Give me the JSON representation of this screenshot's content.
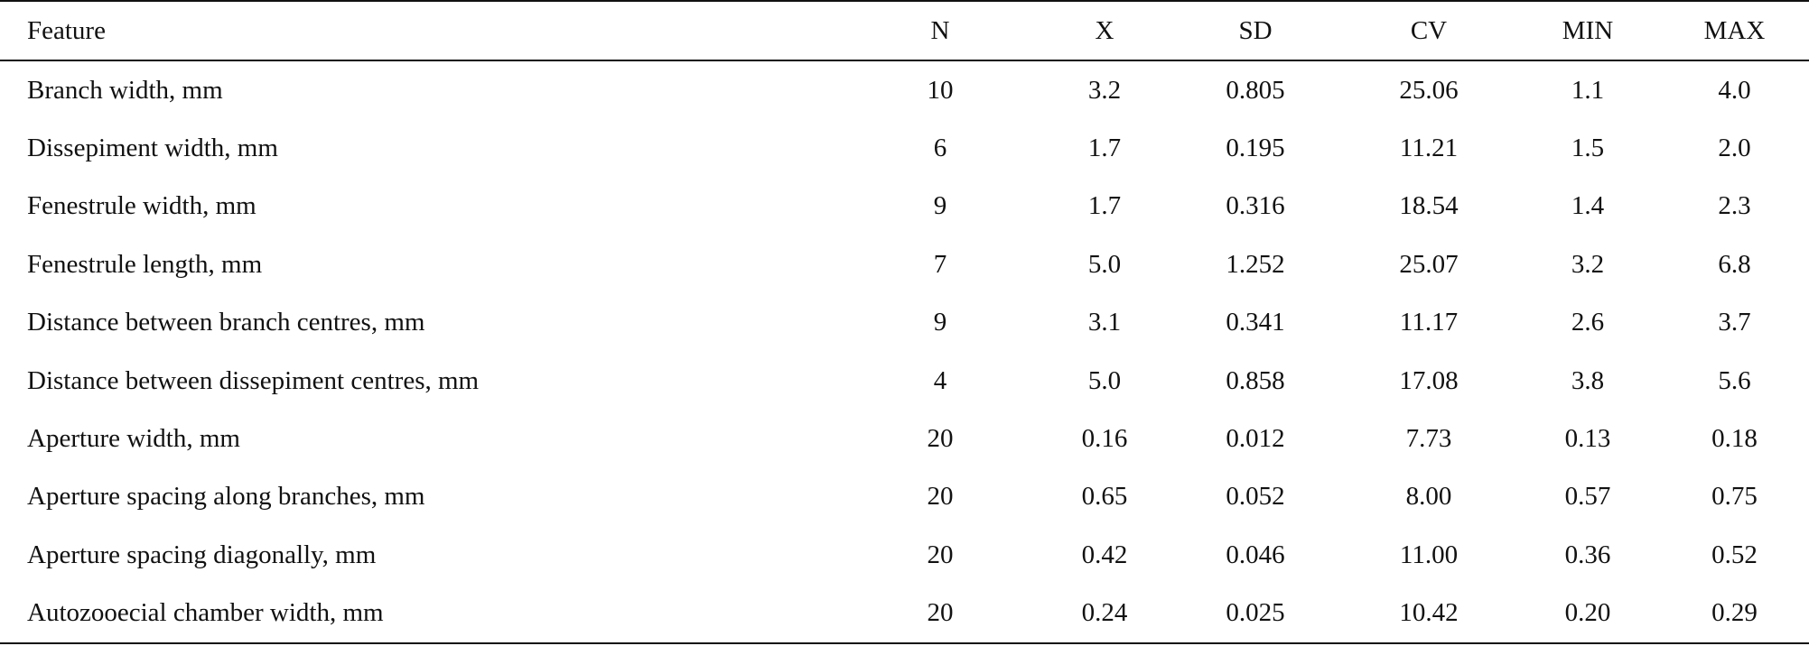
{
  "table": {
    "columns": [
      "Feature",
      "N",
      "X",
      "SD",
      "CV",
      "MIN",
      "MAX"
    ],
    "rows": [
      {
        "feature": "Branch width, mm",
        "n": "10",
        "x": "3.2",
        "sd": "0.805",
        "cv": "25.06",
        "min": "1.1",
        "max": "4.0"
      },
      {
        "feature": "Dissepiment width, mm",
        "n": "6",
        "x": "1.7",
        "sd": "0.195",
        "cv": "11.21",
        "min": "1.5",
        "max": "2.0"
      },
      {
        "feature": "Fenestrule width, mm",
        "n": "9",
        "x": "1.7",
        "sd": "0.316",
        "cv": "18.54",
        "min": "1.4",
        "max": "2.3"
      },
      {
        "feature": "Fenestrule length, mm",
        "n": "7",
        "x": "5.0",
        "sd": "1.252",
        "cv": "25.07",
        "min": "3.2",
        "max": "6.8"
      },
      {
        "feature": "Distance between branch centres, mm",
        "n": "9",
        "x": "3.1",
        "sd": "0.341",
        "cv": "11.17",
        "min": "2.6",
        "max": "3.7"
      },
      {
        "feature": "Distance between dissepiment centres, mm",
        "n": "4",
        "x": "5.0",
        "sd": "0.858",
        "cv": "17.08",
        "min": "3.8",
        "max": "5.6"
      },
      {
        "feature": "Aperture width, mm",
        "n": "20",
        "x": "0.16",
        "sd": "0.012",
        "cv": "7.73",
        "min": "0.13",
        "max": "0.18"
      },
      {
        "feature": "Aperture spacing along branches, mm",
        "n": "20",
        "x": "0.65",
        "sd": "0.052",
        "cv": "8.00",
        "min": "0.57",
        "max": "0.75"
      },
      {
        "feature": "Aperture spacing diagonally, mm",
        "n": "20",
        "x": "0.42",
        "sd": "0.046",
        "cv": "11.00",
        "min": "0.36",
        "max": "0.52"
      },
      {
        "feature": "Autozooecial chamber width, mm",
        "n": "20",
        "x": "0.24",
        "sd": "0.025",
        "cv": "10.42",
        "min": "0.20",
        "max": "0.29"
      }
    ]
  }
}
